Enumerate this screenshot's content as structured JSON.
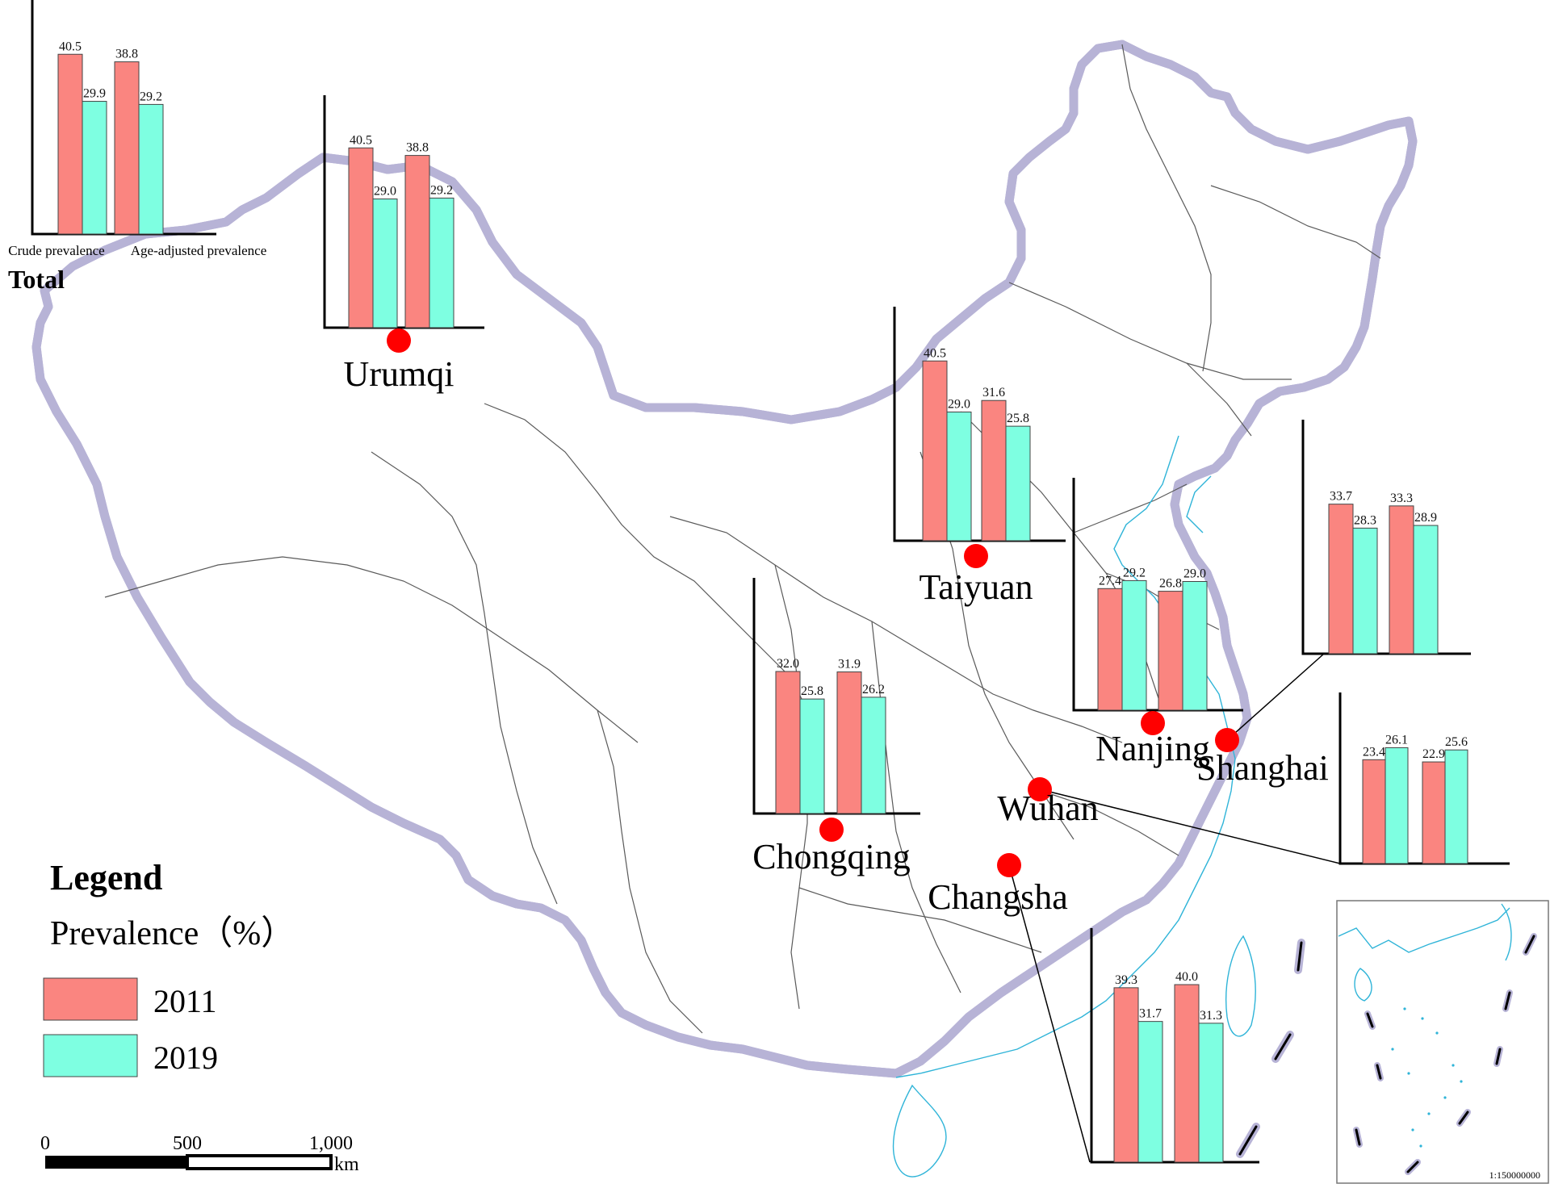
{
  "colors": {
    "y2011": "#fa8580",
    "y2019": "#7effe1",
    "marker": "#ff0000"
  },
  "total_chart": {
    "title": "Total",
    "categories": [
      "Crude prevalence",
      "Age-adjusted prevalence"
    ],
    "values_2011": [
      "40.5",
      "38.8"
    ],
    "values_2019": [
      "29.9",
      "29.2"
    ]
  },
  "chart_data": {
    "type": "bar",
    "categories": [
      "Crude prevalence",
      "Age-adjusted prevalence"
    ],
    "series_names": [
      "2011",
      "2019"
    ],
    "total": {
      "2011": [
        40.5,
        38.8
      ],
      "2019": [
        29.9,
        29.2
      ]
    },
    "cities": [
      {
        "name": "Urumqi",
        "v2011": [
          40.5,
          38.8
        ],
        "v2019": [
          29.0,
          29.2
        ],
        "labels2011": [
          "40.5",
          "38.8"
        ],
        "labels2019": [
          "29.0",
          "29.2"
        ]
      },
      {
        "name": "Taiyuan",
        "v2011": [
          40.5,
          31.6
        ],
        "v2019": [
          29.0,
          25.8
        ],
        "labels2011": [
          "40.5",
          "31.6"
        ],
        "labels2019": [
          "29.0",
          "25.8"
        ]
      },
      {
        "name": "Nanjing",
        "v2011": [
          27.4,
          26.8
        ],
        "v2019": [
          29.2,
          29.0
        ],
        "labels2011": [
          "27.4",
          "26.8"
        ],
        "labels2019": [
          "29.2",
          "29.0"
        ]
      },
      {
        "name": "Shanghai",
        "v2011": [
          33.7,
          33.3
        ],
        "v2019": [
          28.3,
          28.9
        ],
        "labels2011": [
          "33.7",
          "33.3"
        ],
        "labels2019": [
          "28.3",
          "28.9"
        ]
      },
      {
        "name": "Wuhan",
        "v2011": [
          23.4,
          22.9
        ],
        "v2019": [
          26.1,
          25.6
        ],
        "labels2011": [
          "23.4",
          "22.9"
        ],
        "labels2019": [
          "26.1",
          "25.6"
        ]
      },
      {
        "name": "Chongqing",
        "v2011": [
          32.0,
          31.9
        ],
        "v2019": [
          25.8,
          26.2
        ],
        "labels2011": [
          "32.0",
          "31.9"
        ],
        "labels2019": [
          "25.8",
          "26.2"
        ]
      },
      {
        "name": "Changsha",
        "v2011": [
          39.3,
          40.0
        ],
        "v2019": [
          31.7,
          31.3
        ],
        "labels2011": [
          "39.3",
          "40.0"
        ],
        "labels2019": [
          "31.7",
          "31.3"
        ]
      }
    ]
  },
  "legend": {
    "title": "Legend",
    "subtitle": "Prevalence（%）",
    "items": [
      {
        "label": "2011"
      },
      {
        "label": "2019"
      }
    ]
  },
  "scale_bar": {
    "ticks": [
      "0",
      "500",
      "1,000"
    ],
    "unit": "km"
  },
  "inset": {
    "scale": "1:150000000"
  }
}
